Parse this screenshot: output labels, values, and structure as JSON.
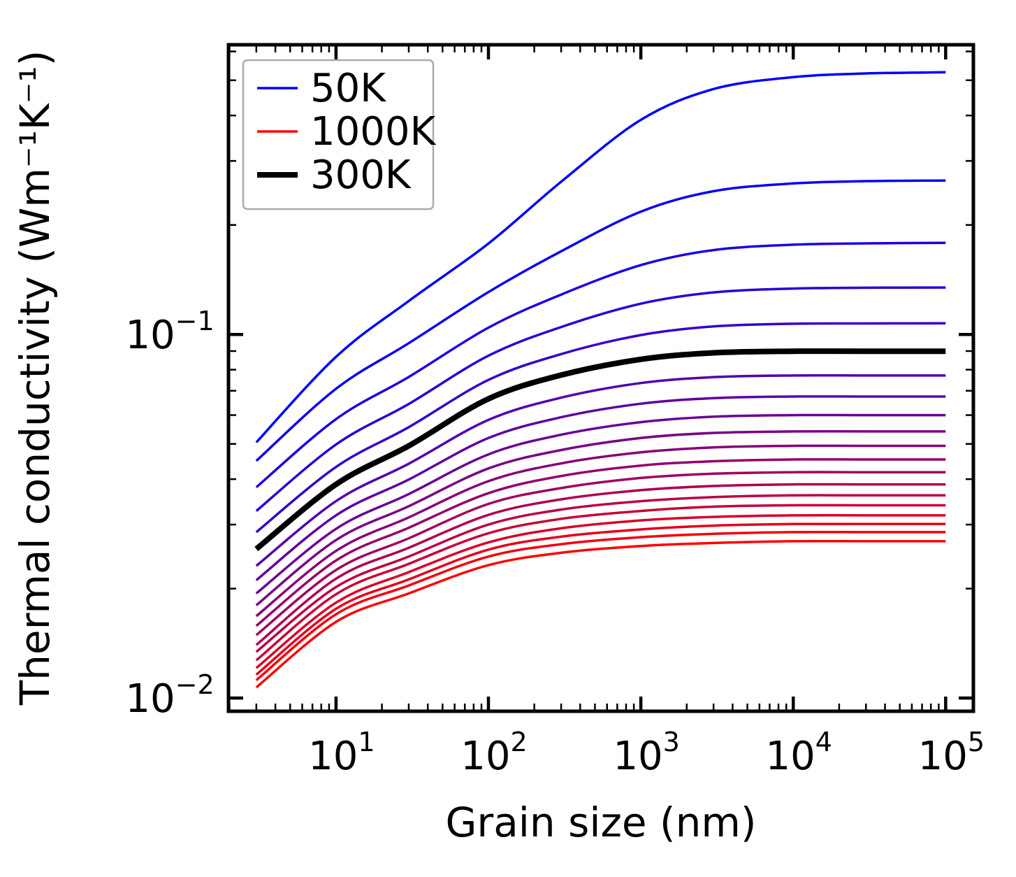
{
  "chart_data": {
    "type": "line",
    "title": "",
    "xlabel": "Grain size (nm)",
    "ylabel": "Thermal conductivity (Wm⁻¹K⁻¹)",
    "x_scale": "log",
    "y_scale": "log",
    "xlim": [
      1.97,
      152000
    ],
    "ylim": [
      0.0092,
      0.626
    ],
    "grid": false,
    "x_major_tick_exponents": [
      1,
      2,
      3,
      4,
      5
    ],
    "y_major_tick_exponents": [
      -1,
      -2
    ],
    "x_minor_ticks_per_decade": [
      2,
      3,
      4,
      5,
      6,
      7,
      8,
      9
    ],
    "y_minor_ticks_per_decade": [
      2,
      3,
      4,
      5,
      6,
      7,
      8,
      9
    ],
    "legend": {
      "position": "upper left",
      "entries": [
        {
          "label": "50K",
          "color": "#0000ff",
          "linewidth": 3.5
        },
        {
          "label": "1000K",
          "color": "#ff0000",
          "linewidth": 3.5
        },
        {
          "label": "300K",
          "color": "#000000",
          "linewidth": 8
        }
      ]
    },
    "x_samples_nm": [
      3,
      10,
      30,
      100,
      300,
      1000,
      3000,
      10000,
      30000,
      100000
    ],
    "series": [
      {
        "temperature_K": 50,
        "color": "#0000ff",
        "linewidth": 3.5,
        "values": [
          0.0505,
          0.0868,
          0.1236,
          0.1778,
          0.263,
          0.389,
          0.473,
          0.51,
          0.522,
          0.526
        ]
      },
      {
        "temperature_K": 100,
        "color": "#0d00f2",
        "linewidth": 3.5,
        "values": [
          0.0449,
          0.0709,
          0.0946,
          0.1308,
          0.1693,
          0.2176,
          0.2477,
          0.2601,
          0.264,
          0.265
        ]
      },
      {
        "temperature_K": 150,
        "color": "#1b00e4",
        "linewidth": 3.5,
        "values": [
          0.038,
          0.0585,
          0.0764,
          0.1044,
          0.1287,
          0.1551,
          0.1706,
          0.1765,
          0.178,
          0.1786
        ]
      },
      {
        "temperature_K": 200,
        "color": "#2800d7",
        "linewidth": 3.5,
        "values": [
          0.0327,
          0.0498,
          0.0644,
          0.0874,
          0.1048,
          0.1215,
          0.1305,
          0.1337,
          0.1344,
          0.1346
        ]
      },
      {
        "temperature_K": 250,
        "color": "#3600c9",
        "linewidth": 3.5,
        "values": [
          0.0286,
          0.0432,
          0.0556,
          0.075,
          0.0883,
          0.0996,
          0.1052,
          0.107,
          0.1072,
          0.1073
        ]
      },
      {
        "temperature_K": 300,
        "color": "#000000",
        "linewidth": 8,
        "values": [
          0.0257,
          0.0387,
          0.0494,
          0.0665,
          0.0773,
          0.0854,
          0.089,
          0.0899,
          0.0899,
          0.0899
        ]
      },
      {
        "temperature_K": 350,
        "color": "#5100ae",
        "linewidth": 3.5,
        "values": [
          0.0231,
          0.0348,
          0.0441,
          0.0582,
          0.067,
          0.0735,
          0.0763,
          0.0771,
          0.0771,
          0.0771
        ]
      },
      {
        "temperature_K": 400,
        "color": "#5e00a1",
        "linewidth": 3.5,
        "values": [
          0.0211,
          0.0318,
          0.0399,
          0.0519,
          0.0592,
          0.0645,
          0.0668,
          0.0675,
          0.0675,
          0.0675
        ]
      },
      {
        "temperature_K": 450,
        "color": "#6b0094",
        "linewidth": 3.5,
        "values": [
          0.0194,
          0.0292,
          0.0364,
          0.0468,
          0.053,
          0.0574,
          0.0594,
          0.06,
          0.06,
          0.06
        ]
      },
      {
        "temperature_K": 500,
        "color": "#790086",
        "linewidth": 3.5,
        "values": [
          0.018,
          0.0272,
          0.0337,
          0.0428,
          0.0481,
          0.0519,
          0.0536,
          0.0541,
          0.0541,
          0.0541
        ]
      },
      {
        "temperature_K": 550,
        "color": "#860079",
        "linewidth": 3.5,
        "values": [
          0.0168,
          0.0254,
          0.0314,
          0.0395,
          0.0442,
          0.0474,
          0.0489,
          0.0494,
          0.0494,
          0.0494
        ]
      },
      {
        "temperature_K": 600,
        "color": "#94006b",
        "linewidth": 3.5,
        "values": [
          0.0158,
          0.0239,
          0.0294,
          0.0366,
          0.0408,
          0.0436,
          0.0448,
          0.0453,
          0.0453,
          0.0453
        ]
      },
      {
        "temperature_K": 650,
        "color": "#a1005e",
        "linewidth": 3.5,
        "values": [
          0.0149,
          0.0225,
          0.0275,
          0.0342,
          0.0378,
          0.0403,
          0.0414,
          0.0418,
          0.0418,
          0.0418
        ]
      },
      {
        "temperature_K": 700,
        "color": "#ae0051",
        "linewidth": 3.5,
        "values": [
          0.014,
          0.0213,
          0.0259,
          0.0319,
          0.0352,
          0.0373,
          0.0383,
          0.0387,
          0.0387,
          0.0387
        ]
      },
      {
        "temperature_K": 750,
        "color": "#bc0043",
        "linewidth": 3.5,
        "values": [
          0.0134,
          0.0202,
          0.0245,
          0.03,
          0.033,
          0.0348,
          0.0357,
          0.0361,
          0.0361,
          0.0361
        ]
      },
      {
        "temperature_K": 800,
        "color": "#c90036",
        "linewidth": 3.5,
        "values": [
          0.0127,
          0.0193,
          0.0234,
          0.0284,
          0.0311,
          0.0327,
          0.0336,
          0.0339,
          0.0339,
          0.0339
        ]
      },
      {
        "temperature_K": 850,
        "color": "#d70028",
        "linewidth": 3.5,
        "values": [
          0.0121,
          0.0183,
          0.0222,
          0.0268,
          0.0293,
          0.0308,
          0.0315,
          0.0318,
          0.0318,
          0.0318
        ]
      },
      {
        "temperature_K": 900,
        "color": "#e4001b",
        "linewidth": 3.5,
        "values": [
          0.0116,
          0.0176,
          0.0212,
          0.0256,
          0.0278,
          0.0291,
          0.0298,
          0.0301,
          0.0301,
          0.0301
        ]
      },
      {
        "temperature_K": 950,
        "color": "#f2000d",
        "linewidth": 3.5,
        "values": [
          0.0112,
          0.017,
          0.0204,
          0.0245,
          0.0265,
          0.0277,
          0.0283,
          0.0286,
          0.0286,
          0.0286
        ]
      },
      {
        "temperature_K": 1000,
        "color": "#ff0000",
        "linewidth": 3.5,
        "values": [
          0.0107,
          0.0162,
          0.0194,
          0.0232,
          0.0251,
          0.0262,
          0.0267,
          0.027,
          0.027,
          0.027
        ]
      }
    ],
    "colors": {
      "axis": "#000000",
      "background": "#ffffff",
      "legend_edge": "#aaaaaa",
      "cold_end": "#0000ff",
      "hot_end": "#ff0000",
      "highlight": "#000000"
    }
  }
}
